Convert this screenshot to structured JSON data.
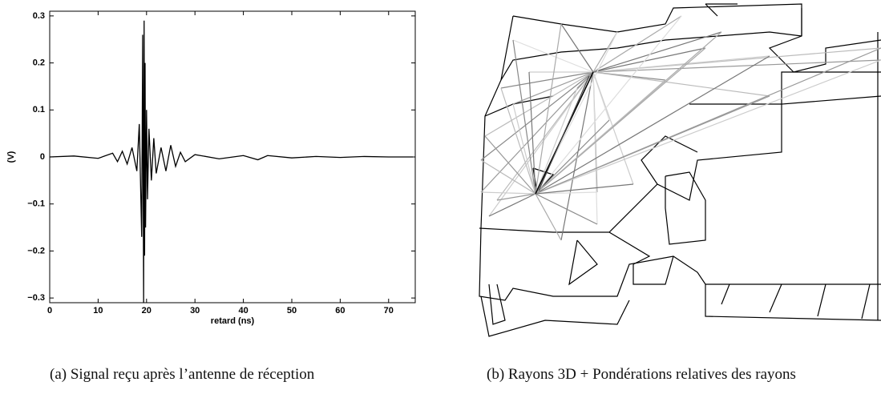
{
  "chart_data": {
    "type": "line",
    "x": [
      0,
      5,
      10,
      13,
      14,
      15,
      16,
      17,
      18,
      18.5,
      19,
      19.2,
      19.4,
      19.5,
      19.6,
      19.7,
      19.8,
      20,
      20.2,
      20.5,
      21,
      21.5,
      22,
      23,
      24,
      25,
      26,
      27,
      28,
      30,
      35,
      40,
      43,
      45,
      50,
      55,
      60,
      65,
      70,
      75
    ],
    "values": [
      0,
      0.002,
      -0.003,
      0.008,
      -0.01,
      0.012,
      -0.015,
      0.02,
      -0.03,
      0.07,
      -0.17,
      0.26,
      -0.31,
      0.29,
      -0.21,
      0.2,
      -0.15,
      0.1,
      -0.09,
      0.06,
      -0.05,
      0.04,
      -0.035,
      0.02,
      -0.03,
      0.025,
      -0.02,
      0.01,
      -0.01,
      0.005,
      -0.004,
      0.003,
      -0.006,
      0.003,
      -0.002,
      0.001,
      -0.001,
      0.001,
      0,
      0
    ],
    "color": "#000000",
    "xlabel": "retard (ns)",
    "ylabel": "(V)",
    "xlim": [
      0,
      75.5
    ],
    "xticks": [
      0,
      10,
      20,
      30,
      40,
      50,
      60,
      70
    ],
    "ylim": [
      -0.31,
      0.31
    ],
    "yticks": [
      {
        "value": -0.3,
        "label": "−0.3"
      },
      {
        "value": -0.2,
        "label": "−0.2"
      },
      {
        "value": -0.1,
        "label": "−0.1"
      },
      0,
      0.1,
      0.2,
      0.3
    ]
  },
  "captions": [
    "(a) Signal reçu après l’antenne de réception",
    "(b) Rayons 3D + Pondérations relatives des rayons"
  ]
}
